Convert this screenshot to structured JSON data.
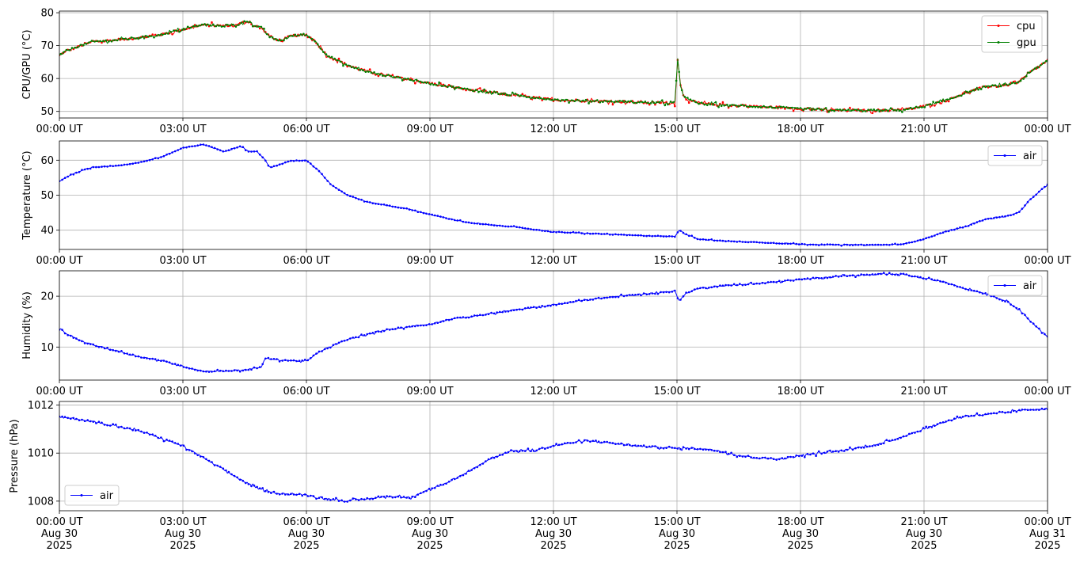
{
  "chart_data": [
    {
      "type": "line",
      "ylabel": "CPU/GPU (°C)",
      "ylim": [
        48,
        80.5
      ],
      "yticks": [
        50,
        60,
        70,
        80
      ],
      "grid": true,
      "legend_loc": "upper right",
      "x_unit": "hours since 2025-08-30 00:00 UT",
      "x_ticks": [
        "00:00 UT",
        "03:00 UT",
        "06:00 UT",
        "09:00 UT",
        "12:00 UT",
        "15:00 UT",
        "18:00 UT",
        "21:00 UT",
        "00:00 UT"
      ],
      "series": [
        {
          "name": "cpu",
          "color": "#ff0000",
          "noise": 0.6,
          "points": [
            [
              0,
              67
            ],
            [
              0.2,
              68.5
            ],
            [
              0.5,
              70
            ],
            [
              0.8,
              71.2
            ],
            [
              1.2,
              71.5
            ],
            [
              2,
              72.5
            ],
            [
              2.5,
              73.5
            ],
            [
              3,
              75
            ],
            [
              3.5,
              76.3
            ],
            [
              4,
              76
            ],
            [
              4.3,
              76.3
            ],
            [
              4.5,
              77.2
            ],
            [
              4.65,
              77.5
            ],
            [
              4.7,
              76
            ],
            [
              4.9,
              75.5
            ],
            [
              5,
              74
            ],
            [
              5.2,
              72
            ],
            [
              5.4,
              71.5
            ],
            [
              5.6,
              72.8
            ],
            [
              5.8,
              73.2
            ],
            [
              6,
              73.2
            ],
            [
              6.2,
              71.5
            ],
            [
              6.5,
              67
            ],
            [
              7,
              64
            ],
            [
              7.5,
              62
            ],
            [
              8,
              60.8
            ],
            [
              8.5,
              59.7
            ],
            [
              9,
              58.5
            ],
            [
              10,
              56.5
            ],
            [
              11,
              55
            ],
            [
              12,
              53.5
            ],
            [
              13,
              53.2
            ],
            [
              14,
              52.8
            ],
            [
              14.95,
              52.5
            ],
            [
              15.02,
              66.5
            ],
            [
              15.08,
              58
            ],
            [
              15.2,
              54
            ],
            [
              15.5,
              52.5
            ],
            [
              16,
              52
            ],
            [
              17,
              51.5
            ],
            [
              18,
              50.8
            ],
            [
              19,
              50.3
            ],
            [
              20,
              50.3
            ],
            [
              20.5,
              50.5
            ],
            [
              21,
              51.5
            ],
            [
              21.5,
              53.2
            ],
            [
              22,
              55.5
            ],
            [
              22.5,
              57.5
            ],
            [
              23,
              58
            ],
            [
              23.3,
              59
            ],
            [
              23.6,
              62
            ],
            [
              24,
              65.5
            ]
          ]
        },
        {
          "name": "gpu",
          "color": "#008000",
          "noise": 0.5,
          "points": [
            [
              0,
              67
            ],
            [
              0.2,
              68.5
            ],
            [
              0.5,
              70
            ],
            [
              0.8,
              71.2
            ],
            [
              1.2,
              71.5
            ],
            [
              2,
              72.5
            ],
            [
              2.5,
              73.5
            ],
            [
              3,
              75
            ],
            [
              3.5,
              76.3
            ],
            [
              4,
              76
            ],
            [
              4.3,
              76.3
            ],
            [
              4.5,
              77.2
            ],
            [
              4.65,
              77.5
            ],
            [
              4.7,
              76
            ],
            [
              4.9,
              75.5
            ],
            [
              5,
              74
            ],
            [
              5.2,
              72
            ],
            [
              5.4,
              71.5
            ],
            [
              5.6,
              72.8
            ],
            [
              5.8,
              73.2
            ],
            [
              6,
              73.2
            ],
            [
              6.2,
              71.5
            ],
            [
              6.5,
              67
            ],
            [
              7,
              64
            ],
            [
              7.5,
              62
            ],
            [
              8,
              60.8
            ],
            [
              8.5,
              59.7
            ],
            [
              9,
              58.5
            ],
            [
              10,
              56.5
            ],
            [
              11,
              55
            ],
            [
              12,
              53.5
            ],
            [
              13,
              53.2
            ],
            [
              14,
              52.8
            ],
            [
              14.95,
              52.5
            ],
            [
              15.02,
              66.5
            ],
            [
              15.08,
              58
            ],
            [
              15.2,
              54
            ],
            [
              15.5,
              52.5
            ],
            [
              16,
              52
            ],
            [
              17,
              51.5
            ],
            [
              18,
              50.8
            ],
            [
              19,
              50.3
            ],
            [
              20,
              50.3
            ],
            [
              20.5,
              50.5
            ],
            [
              21,
              51.5
            ],
            [
              21.5,
              53.2
            ],
            [
              22,
              55.5
            ],
            [
              22.5,
              57.5
            ],
            [
              23,
              58
            ],
            [
              23.3,
              59
            ],
            [
              23.6,
              62
            ],
            [
              24,
              65.5
            ]
          ]
        }
      ]
    },
    {
      "type": "line",
      "ylabel": "Temperature (°C)",
      "ylim": [
        34.5,
        65.5
      ],
      "yticks": [
        40,
        50,
        60
      ],
      "grid": true,
      "legend_loc": "upper right",
      "x_unit": "hours since 2025-08-30 00:00 UT",
      "x_ticks": [
        "00:00 UT",
        "03:00 UT",
        "06:00 UT",
        "09:00 UT",
        "12:00 UT",
        "15:00 UT",
        "18:00 UT",
        "21:00 UT",
        "00:00 UT"
      ],
      "series": [
        {
          "name": "air",
          "color": "#0000ff",
          "noise": 0.15,
          "points": [
            [
              0,
              54
            ],
            [
              0.3,
              56
            ],
            [
              0.8,
              58
            ],
            [
              1.5,
              58.5
            ],
            [
              2,
              59.5
            ],
            [
              2.5,
              61
            ],
            [
              3,
              63.5
            ],
            [
              3.5,
              64.5
            ],
            [
              4,
              62.5
            ],
            [
              4.4,
              64
            ],
            [
              4.6,
              62.5
            ],
            [
              4.8,
              62.5
            ],
            [
              5,
              60
            ],
            [
              5.1,
              58
            ],
            [
              5.3,
              58.5
            ],
            [
              5.6,
              59.8
            ],
            [
              6,
              60
            ],
            [
              6.3,
              57
            ],
            [
              6.6,
              53
            ],
            [
              7,
              50
            ],
            [
              7.5,
              48
            ],
            [
              8,
              47
            ],
            [
              8.5,
              46
            ],
            [
              9,
              44.5
            ],
            [
              9.5,
              43.2
            ],
            [
              10,
              42
            ],
            [
              11,
              41
            ],
            [
              12,
              39.5
            ],
            [
              13,
              39
            ],
            [
              14,
              38.5
            ],
            [
              14.95,
              38.2
            ],
            [
              15.05,
              40
            ],
            [
              15.2,
              39
            ],
            [
              15.5,
              37.5
            ],
            [
              16,
              37
            ],
            [
              17,
              36.5
            ],
            [
              18,
              36
            ],
            [
              19,
              35.8
            ],
            [
              20,
              35.8
            ],
            [
              20.5,
              36
            ],
            [
              21,
              37.5
            ],
            [
              21.5,
              39.5
            ],
            [
              22,
              41
            ],
            [
              22.5,
              43.2
            ],
            [
              23,
              44
            ],
            [
              23.3,
              45
            ],
            [
              23.6,
              49
            ],
            [
              24,
              53
            ]
          ]
        }
      ]
    },
    {
      "type": "line",
      "ylabel": "Humidity (%)",
      "ylim": [
        3.5,
        25
      ],
      "yticks": [
        10,
        20
      ],
      "grid": true,
      "legend_loc": "upper right",
      "x_unit": "hours since 2025-08-30 00:00 UT",
      "x_ticks": [
        "00:00 UT",
        "03:00 UT",
        "06:00 UT",
        "09:00 UT",
        "12:00 UT",
        "15:00 UT",
        "18:00 UT",
        "21:00 UT",
        "00:00 UT"
      ],
      "series": [
        {
          "name": "air",
          "color": "#0000ff",
          "noise": 0.2,
          "points": [
            [
              0,
              13.5
            ],
            [
              0.3,
              12
            ],
            [
              0.6,
              11
            ],
            [
              1,
              10
            ],
            [
              1.5,
              9
            ],
            [
              2,
              8
            ],
            [
              2.5,
              7.3
            ],
            [
              3,
              6.2
            ],
            [
              3.5,
              5.2
            ],
            [
              4,
              5.3
            ],
            [
              4.5,
              5.5
            ],
            [
              4.9,
              6
            ],
            [
              5,
              7.8
            ],
            [
              5.3,
              7.5
            ],
            [
              5.7,
              7.3
            ],
            [
              6,
              7.2
            ],
            [
              6.3,
              9
            ],
            [
              6.7,
              10.5
            ],
            [
              7,
              11.5
            ],
            [
              7.5,
              12.5
            ],
            [
              8,
              13.5
            ],
            [
              8.5,
              14
            ],
            [
              9,
              14.5
            ],
            [
              9.5,
              15.5
            ],
            [
              10,
              16
            ],
            [
              11,
              17.2
            ],
            [
              12,
              18.3
            ],
            [
              13,
              19.5
            ],
            [
              14,
              20.3
            ],
            [
              14.95,
              21
            ],
            [
              15.05,
              19
            ],
            [
              15.2,
              20.5
            ],
            [
              15.5,
              21.5
            ],
            [
              16,
              22
            ],
            [
              17,
              22.5
            ],
            [
              18,
              23.3
            ],
            [
              19,
              24
            ],
            [
              20,
              24.3
            ],
            [
              20.5,
              24.3
            ],
            [
              21,
              23.5
            ],
            [
              21.5,
              22.8
            ],
            [
              22,
              21.5
            ],
            [
              22.5,
              20.5
            ],
            [
              23,
              19
            ],
            [
              23.3,
              17.5
            ],
            [
              23.6,
              15
            ],
            [
              24,
              12
            ]
          ]
        }
      ]
    },
    {
      "type": "line",
      "ylabel": "Pressure (hPa)",
      "ylim": [
        1007.6,
        1012.15
      ],
      "yticks": [
        1008,
        1010,
        1012
      ],
      "grid": true,
      "legend_loc": "lower left",
      "x_unit": "hours since 2025-08-30 00:00 UT",
      "x_ticks": [
        "00:00 UT",
        "03:00 UT",
        "06:00 UT",
        "09:00 UT",
        "12:00 UT",
        "15:00 UT",
        "18:00 UT",
        "21:00 UT",
        "00:00 UT"
      ],
      "x_tick_lines2": [
        "Aug 30",
        "Aug 30",
        "Aug 30",
        "Aug 30",
        "Aug 30",
        "Aug 30",
        "Aug 30",
        "Aug 30",
        "Aug 31"
      ],
      "x_tick_lines3": [
        "2025",
        "2025",
        "2025",
        "2025",
        "2025",
        "2025",
        "2025",
        "2025",
        "2025"
      ],
      "series": [
        {
          "name": "air",
          "color": "#0000ff",
          "noise": 0.06,
          "points": [
            [
              0,
              1011.5
            ],
            [
              0.5,
              1011.4
            ],
            [
              1,
              1011.25
            ],
            [
              2,
              1010.9
            ],
            [
              2.5,
              1010.6
            ],
            [
              3,
              1010.3
            ],
            [
              3.5,
              1009.8
            ],
            [
              4,
              1009.3
            ],
            [
              4.5,
              1008.8
            ],
            [
              5,
              1008.4
            ],
            [
              5.5,
              1008.3
            ],
            [
              6,
              1008.25
            ],
            [
              6.5,
              1008.1
            ],
            [
              7,
              1008
            ],
            [
              7.5,
              1008.1
            ],
            [
              8,
              1008.2
            ],
            [
              8.5,
              1008.15
            ],
            [
              9,
              1008.5
            ],
            [
              9.5,
              1008.8
            ],
            [
              10,
              1009.3
            ],
            [
              10.5,
              1009.8
            ],
            [
              11,
              1010.1
            ],
            [
              11.5,
              1010.1
            ],
            [
              12,
              1010.3
            ],
            [
              12.5,
              1010.45
            ],
            [
              13,
              1010.5
            ],
            [
              13.5,
              1010.4
            ],
            [
              14,
              1010.3
            ],
            [
              14.5,
              1010.25
            ],
            [
              15,
              1010.2
            ],
            [
              15.5,
              1010.2
            ],
            [
              16,
              1010.1
            ],
            [
              16.5,
              1009.9
            ],
            [
              17,
              1009.8
            ],
            [
              17.5,
              1009.75
            ],
            [
              18,
              1009.9
            ],
            [
              18.5,
              1010
            ],
            [
              19,
              1010.1
            ],
            [
              19.5,
              1010.25
            ],
            [
              20,
              1010.4
            ],
            [
              20.5,
              1010.7
            ],
            [
              21,
              1011
            ],
            [
              21.5,
              1011.3
            ],
            [
              22,
              1011.55
            ],
            [
              22.5,
              1011.6
            ],
            [
              23,
              1011.7
            ],
            [
              23.5,
              1011.8
            ],
            [
              24,
              1011.85
            ]
          ]
        }
      ]
    }
  ]
}
